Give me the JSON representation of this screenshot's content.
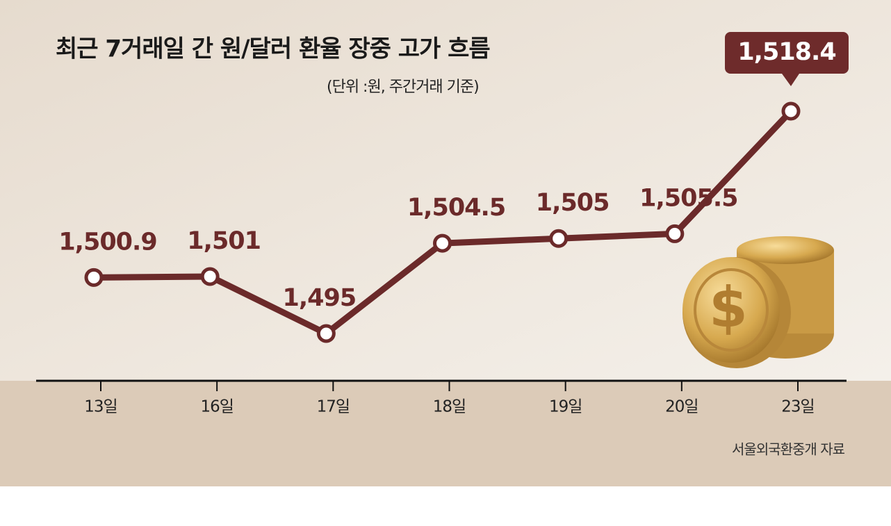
{
  "chart_data": {
    "type": "line",
    "title": "최근 7거래일 간 원/달러 환율 장중 고가 흐름",
    "subtitle": "(단위 :원, 주간거래 기준)",
    "source": "서울외국환중개 자료",
    "categories": [
      "13일",
      "16일",
      "17일",
      "18일",
      "19일",
      "20일",
      "23일"
    ],
    "values": [
      1500.9,
      1501,
      1495,
      1504.5,
      1505,
      1505.5,
      1518.4
    ],
    "value_labels": [
      "1,500.9",
      "1,501",
      "1,495",
      "1,504.5",
      "1,505",
      "1,505.5",
      "1,518.4"
    ],
    "color": "#6b2a2a"
  }
}
